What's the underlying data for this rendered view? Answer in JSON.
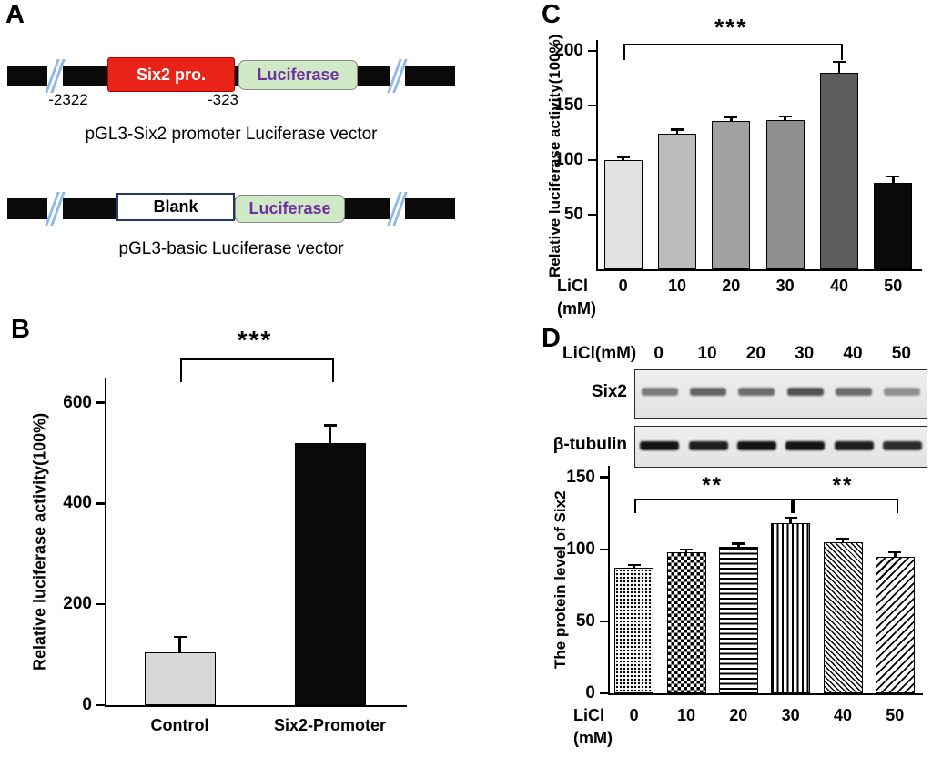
{
  "panelA": {
    "label": "A",
    "construct1": {
      "promoter_label": "Six2 pro.",
      "luciferase_label": "Luciferase",
      "coord_left": "-2322",
      "coord_right": "-323",
      "caption": "pGL3-Six2 promoter Luciferase vector"
    },
    "construct2": {
      "box_label": "Blank",
      "luciferase_label": "Luciferase",
      "caption": "pGL3-basic Luciferase vector"
    },
    "colors": {
      "promoter_fill": "#ea2318",
      "luciferase_fill": "#cfe8c6",
      "luciferase_text": "#7030a0",
      "backbone": "#0b0b0b",
      "break_mark": "#8fb8e8"
    }
  },
  "panelB": {
    "label": "B"
  },
  "panelC": {
    "label": "C"
  },
  "panelD": {
    "label": "D",
    "blot": {
      "header": "LiCl(mM)",
      "lanes": [
        "0",
        "10",
        "20",
        "30",
        "40",
        "50"
      ],
      "rows": [
        {
          "name": "Six2"
        },
        {
          "name": "β-tubulin"
        }
      ]
    }
  },
  "chart_data": [
    {
      "id": "B",
      "type": "bar",
      "categories": [
        "Control",
        "Six2-Promoter"
      ],
      "values": [
        105,
        520
      ],
      "errors": [
        30,
        35
      ],
      "ylabel": "Relative luciferase activity(100%)",
      "yticks": [
        0,
        200,
        400,
        600
      ],
      "ylim": [
        0,
        650
      ],
      "bar_colors": [
        "#d8d8d8",
        "#0a0a0a"
      ],
      "significance": [
        {
          "from": 0,
          "to": 1,
          "label": "***"
        }
      ],
      "legend": "none",
      "grid": false
    },
    {
      "id": "C",
      "type": "bar",
      "categories": [
        "0",
        "10",
        "20",
        "30",
        "40",
        "50"
      ],
      "values": [
        100,
        124,
        136,
        137,
        180,
        79
      ],
      "errors": [
        3,
        4,
        3,
        3,
        10,
        6
      ],
      "xlabel_lines": [
        "LiCl",
        "(mM)"
      ],
      "ylabel": "Relative luciferase activity(100%)",
      "yticks": [
        50,
        100,
        150,
        200
      ],
      "ylim": [
        0,
        210
      ],
      "bar_colors": [
        "#e2e2e2",
        "#bcbcbc",
        "#a0a0a0",
        "#8f8f8f",
        "#5c5c5c",
        "#0a0a0a"
      ],
      "significance": [
        {
          "from": 0,
          "to": 4,
          "label": "***"
        }
      ],
      "legend": "none",
      "grid": false
    },
    {
      "id": "D",
      "type": "bar",
      "categories": [
        "0",
        "10",
        "20",
        "30",
        "40",
        "50"
      ],
      "values": [
        87,
        98,
        102,
        118,
        105,
        95
      ],
      "errors": [
        2,
        2,
        2,
        4,
        2,
        3
      ],
      "xlabel_lines": [
        "LiCl",
        "(mM)"
      ],
      "ylabel": "The protein level of Six2",
      "yticks": [
        0,
        50,
        100,
        150
      ],
      "ylim": [
        0,
        158
      ],
      "bar_patterns": [
        "dots",
        "checker",
        "hlines",
        "vlines",
        "diag-fine",
        "diag"
      ],
      "significance": [
        {
          "from": 0,
          "to": 3,
          "label": "**"
        },
        {
          "from": 3,
          "to": 5,
          "label": "**"
        }
      ],
      "legend": "none",
      "grid": false
    }
  ]
}
